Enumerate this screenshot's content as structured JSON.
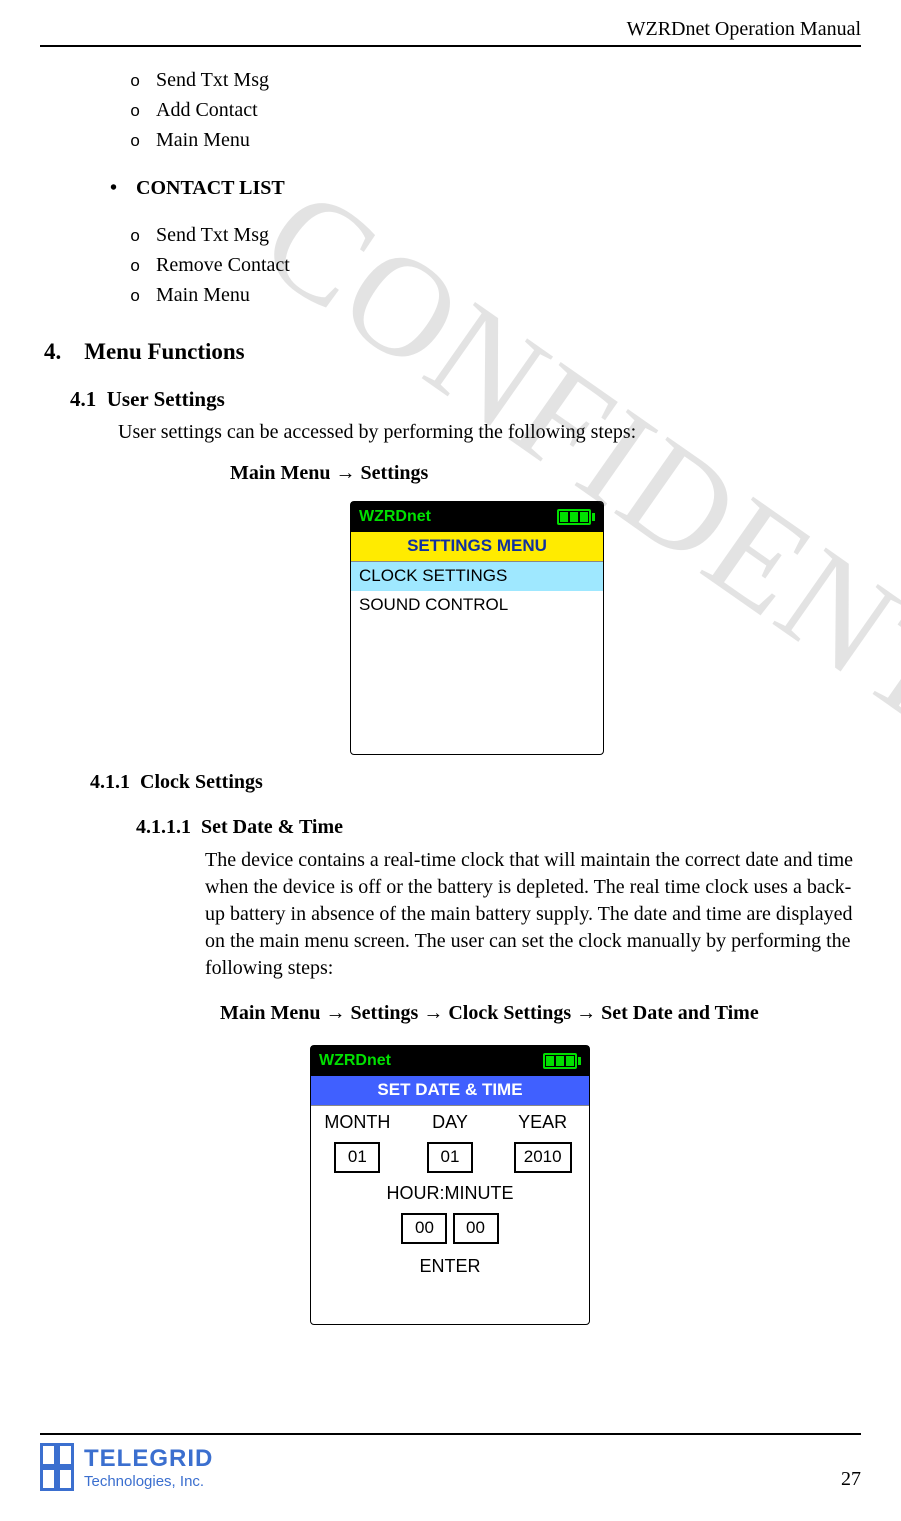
{
  "header": {
    "title": "WZRDnet Operation Manual"
  },
  "watermark": "CONFIDENTIAL",
  "lists": {
    "group1": [
      "Send Txt Msg",
      "Add Contact",
      "Main Menu"
    ],
    "bullet1": "CONTACT LIST",
    "group2": [
      "Send Txt Msg",
      "Remove Contact",
      "Main Menu"
    ]
  },
  "sec4": {
    "num": "4.",
    "title": "Menu Functions"
  },
  "sec41": {
    "num": "4.1",
    "title": "User Settings",
    "body": "User settings can be accessed by performing the following steps:",
    "nav": "Main Menu → Settings"
  },
  "device1": {
    "brand": "WZRDnet",
    "title": "SETTINGS MENU",
    "rows": [
      "CLOCK SETTINGS",
      "SOUND CONTROL"
    ],
    "highlight_index": 0,
    "colors": {
      "top_bg": "#000000",
      "top_fg": "#00e000",
      "title_bg": "#ffeb00",
      "title_fg": "#1030a0",
      "hl_bg": "#9fe8ff"
    }
  },
  "sec411": {
    "num": "4.1.1",
    "title": "Clock Settings"
  },
  "sec4111": {
    "num": "4.1.1.1",
    "title": "Set Date & Time",
    "body": "The device contains a real-time clock that will maintain the correct date and time when the device is off or the battery is depleted.  The real time clock uses a back-up battery in absence of the main battery supply.   The date and time are displayed on the main menu screen.  The user can set the clock manually by performing the following steps:",
    "nav": "Main Menu → Settings → Clock Settings → Set Date and Time"
  },
  "device2": {
    "brand": "WZRDnet",
    "title": "SET DATE & TIME",
    "date_labels": [
      "MONTH",
      "DAY",
      "YEAR"
    ],
    "date_values": [
      "01",
      "01",
      "2010"
    ],
    "time_label": "HOUR:MINUTE",
    "time_values": [
      "00",
      "00"
    ],
    "enter": "ENTER",
    "colors": {
      "top_bg": "#000000",
      "top_fg": "#00e000",
      "title_bg": "#4060ff",
      "title_fg": "#ffffff"
    }
  },
  "footer": {
    "logo_line1": "TELEGRID",
    "logo_line2": "Technologies, Inc.",
    "logo_color": "#3b6fcf",
    "page_number": "27"
  }
}
